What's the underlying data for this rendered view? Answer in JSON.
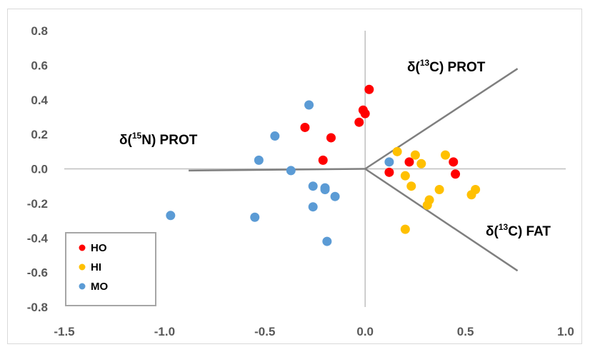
{
  "chart_data": {
    "type": "scatter",
    "xlim": [
      -1.5,
      1.0
    ],
    "ylim": [
      -0.8,
      0.8
    ],
    "x_ticks": [
      "-1.5",
      "-1.0",
      "-0.5",
      "0.0",
      "0.5",
      "1.0"
    ],
    "y_ticks": [
      "0.8",
      "0.6",
      "0.4",
      "0.2",
      "0.0",
      "-0.2",
      "-0.4",
      "-0.6",
      "-0.8"
    ],
    "grid": false,
    "legend_position": "bottom-left",
    "annotations": {
      "prot_c13": {
        "pre": "δ(",
        "sup": "13",
        "post": "C) PROT"
      },
      "prot_n15": {
        "pre": "δ(",
        "sup": "15",
        "post": "N) PROT"
      },
      "fat_c13": {
        "pre": "δ(",
        "sup": "13",
        "post": "C) FAT"
      }
    },
    "vectors": [
      {
        "x": [
          0,
          0.76
        ],
        "y": [
          0,
          0.58
        ]
      },
      {
        "x": [
          0,
          -0.88
        ],
        "y": [
          0,
          -0.01
        ]
      },
      {
        "x": [
          0,
          0.76
        ],
        "y": [
          0,
          -0.59
        ]
      }
    ],
    "series": [
      {
        "name": "HO",
        "color": "#ff0000",
        "x": [
          0.02,
          -0.01,
          0.0,
          -0.03,
          -0.3,
          -0.17,
          -0.21,
          0.22,
          0.44,
          0.45,
          0.12
        ],
        "y": [
          0.46,
          0.34,
          0.32,
          0.27,
          0.24,
          0.18,
          0.05,
          0.04,
          0.04,
          -0.03,
          -0.02
        ]
      },
      {
        "name": "HI",
        "color": "#ffc000",
        "x": [
          0.16,
          0.25,
          0.28,
          0.4,
          0.2,
          0.23,
          0.37,
          0.55,
          0.53,
          0.32,
          0.31,
          0.2
        ],
        "y": [
          0.1,
          0.08,
          0.03,
          0.08,
          -0.04,
          -0.1,
          -0.12,
          -0.12,
          -0.15,
          -0.18,
          -0.21,
          -0.35
        ]
      },
      {
        "name": "MO",
        "color": "#5b9bd5",
        "x": [
          -0.28,
          -0.45,
          -0.53,
          -0.37,
          0.12,
          -0.26,
          -0.2,
          -0.2,
          -0.15,
          -0.26,
          -0.97,
          -0.55,
          -0.19
        ],
        "y": [
          0.37,
          0.19,
          0.05,
          -0.01,
          0.04,
          -0.1,
          -0.11,
          -0.12,
          -0.16,
          -0.22,
          -0.27,
          -0.28,
          -0.42
        ]
      }
    ]
  }
}
